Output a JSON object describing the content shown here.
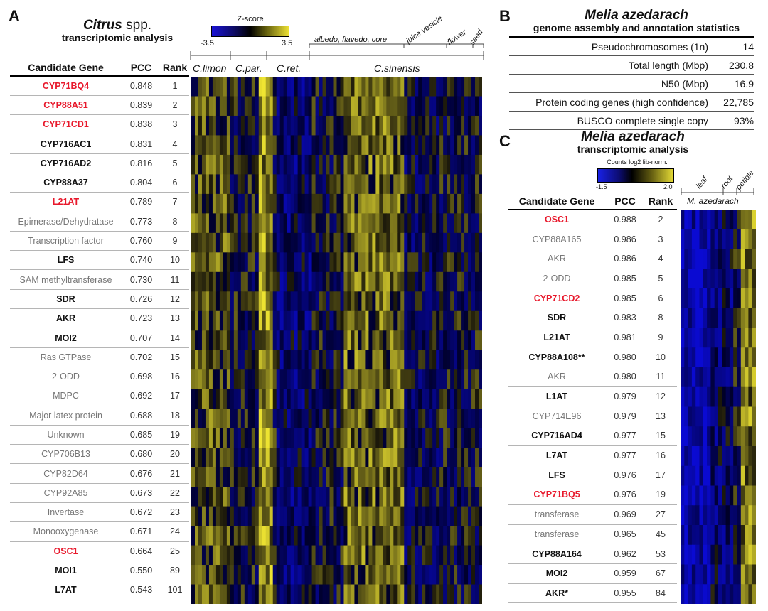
{
  "panels": {
    "a": "A",
    "b": "B",
    "c": "C"
  },
  "panel_a": {
    "title_genus": "Citrus",
    "title_suffix": " spp.",
    "subtitle": "transcriptomic analysis",
    "colorbar": {
      "label": "Z-score",
      "min": "-3.5",
      "max": "3.5"
    },
    "tissues": [
      "albedo, flavedo, core",
      "juice vesicle",
      "flower",
      "seed"
    ],
    "species": [
      "C.limon",
      "C.par.",
      "C.ret.",
      "C.sinensis"
    ],
    "headers": [
      "Candidate Gene",
      "PCC",
      "Rank"
    ],
    "rows": [
      {
        "gene": "CYP71BQ4",
        "pcc": "0.848",
        "rank": "1",
        "style": "red"
      },
      {
        "gene": "CYP88A51",
        "pcc": "0.839",
        "rank": "2",
        "style": "red"
      },
      {
        "gene": "CYP71CD1",
        "pcc": "0.838",
        "rank": "3",
        "style": "red"
      },
      {
        "gene": "CYP716AC1",
        "pcc": "0.831",
        "rank": "4",
        "style": "black"
      },
      {
        "gene": "CYP716AD2",
        "pcc": "0.816",
        "rank": "5",
        "style": "black"
      },
      {
        "gene": "CYP88A37",
        "pcc": "0.804",
        "rank": "6",
        "style": "black"
      },
      {
        "gene": "L21AT",
        "pcc": "0.789",
        "rank": "7",
        "style": "red"
      },
      {
        "gene": "Epimerase/Dehydratase",
        "pcc": "0.773",
        "rank": "8",
        "style": "grey"
      },
      {
        "gene": "Transcription factor",
        "pcc": "0.760",
        "rank": "9",
        "style": "grey"
      },
      {
        "gene": "LFS",
        "pcc": "0.740",
        "rank": "10",
        "style": "black"
      },
      {
        "gene": "SAM methyltransferase",
        "pcc": "0.730",
        "rank": "11",
        "style": "grey"
      },
      {
        "gene": "SDR",
        "pcc": "0.726",
        "rank": "12",
        "style": "black"
      },
      {
        "gene": "AKR",
        "pcc": "0.723",
        "rank": "13",
        "style": "black"
      },
      {
        "gene": "MOI2",
        "pcc": "0.707",
        "rank": "14",
        "style": "black"
      },
      {
        "gene": "Ras GTPase",
        "pcc": "0.702",
        "rank": "15",
        "style": "grey"
      },
      {
        "gene": "2-ODD",
        "pcc": "0.698",
        "rank": "16",
        "style": "grey"
      },
      {
        "gene": "MDPC",
        "pcc": "0.692",
        "rank": "17",
        "style": "grey"
      },
      {
        "gene": "Major latex protein",
        "pcc": "0.688",
        "rank": "18",
        "style": "grey"
      },
      {
        "gene": "Unknown",
        "pcc": "0.685",
        "rank": "19",
        "style": "grey"
      },
      {
        "gene": "CYP706B13",
        "pcc": "0.680",
        "rank": "20",
        "style": "grey"
      },
      {
        "gene": "CYP82D64",
        "pcc": "0.676",
        "rank": "21",
        "style": "grey"
      },
      {
        "gene": "CYP92A85",
        "pcc": "0.673",
        "rank": "22",
        "style": "grey"
      },
      {
        "gene": "Invertase",
        "pcc": "0.672",
        "rank": "23",
        "style": "grey"
      },
      {
        "gene": "Monooxygenase",
        "pcc": "0.671",
        "rank": "24",
        "style": "grey"
      },
      {
        "gene": "OSC1",
        "pcc": "0.664",
        "rank": "25",
        "style": "red"
      },
      {
        "gene": "MOI1",
        "pcc": "0.550",
        "rank": "89",
        "style": "black"
      },
      {
        "gene": "L7AT",
        "pcc": "0.543",
        "rank": "101",
        "style": "black"
      }
    ]
  },
  "panel_b": {
    "title": "Melia azedarach",
    "subtitle": "genome assembly and annotation statistics",
    "rows": [
      {
        "label": "Pseudochromosomes (1n)",
        "value": "14"
      },
      {
        "label": "Total length (Mbp)",
        "value": "230.8"
      },
      {
        "label": "N50 (Mbp)",
        "value": "16.9"
      },
      {
        "label": "Protein coding genes (high confidence)",
        "value": "22,785"
      },
      {
        "label": "BUSCO complete single copy",
        "value": "93%"
      }
    ]
  },
  "panel_c": {
    "title": "Melia azedarach",
    "subtitle": "transcriptomic analysis",
    "colorbar": {
      "label": "Counts log2 lib-norm.",
      "min": "-1.5",
      "max": "2.0"
    },
    "tissues": [
      "leaf",
      "root",
      "petiole"
    ],
    "species": "M. azedarach",
    "headers": [
      "Candidate Gene",
      "PCC",
      "Rank"
    ],
    "rows": [
      {
        "gene": "OSC1",
        "pcc": "0.988",
        "rank": "2",
        "style": "red"
      },
      {
        "gene": "CYP88A165",
        "pcc": "0.986",
        "rank": "3",
        "style": "grey"
      },
      {
        "gene": "AKR",
        "pcc": "0.986",
        "rank": "4",
        "style": "grey"
      },
      {
        "gene": "2-ODD",
        "pcc": "0.985",
        "rank": "5",
        "style": "grey"
      },
      {
        "gene": "CYP71CD2",
        "pcc": "0.985",
        "rank": "6",
        "style": "red"
      },
      {
        "gene": "SDR",
        "pcc": "0.983",
        "rank": "8",
        "style": "black"
      },
      {
        "gene": "L21AT",
        "pcc": "0.981",
        "rank": "9",
        "style": "black"
      },
      {
        "gene": "CYP88A108**",
        "pcc": "0.980",
        "rank": "10",
        "style": "black"
      },
      {
        "gene": "AKR",
        "pcc": "0.980",
        "rank": "11",
        "style": "grey"
      },
      {
        "gene": "L1AT",
        "pcc": "0.979",
        "rank": "12",
        "style": "black"
      },
      {
        "gene": "CYP714E96",
        "pcc": "0.979",
        "rank": "13",
        "style": "grey"
      },
      {
        "gene": "CYP716AD4",
        "pcc": "0.977",
        "rank": "15",
        "style": "black"
      },
      {
        "gene": "L7AT",
        "pcc": "0.977",
        "rank": "16",
        "style": "black"
      },
      {
        "gene": "LFS",
        "pcc": "0.976",
        "rank": "17",
        "style": "black"
      },
      {
        "gene": "CYP71BQ5",
        "pcc": "0.976",
        "rank": "19",
        "style": "red"
      },
      {
        "gene": "transferase",
        "pcc": "0.969",
        "rank": "27",
        "style": "grey"
      },
      {
        "gene": "transferase",
        "pcc": "0.965",
        "rank": "45",
        "style": "grey"
      },
      {
        "gene": "CYP88A164",
        "pcc": "0.962",
        "rank": "53",
        "style": "black"
      },
      {
        "gene": "MOI2",
        "pcc": "0.959",
        "rank": "67",
        "style": "black"
      },
      {
        "gene": "AKR*",
        "pcc": "0.955",
        "rank": "84",
        "style": "black"
      }
    ]
  }
}
